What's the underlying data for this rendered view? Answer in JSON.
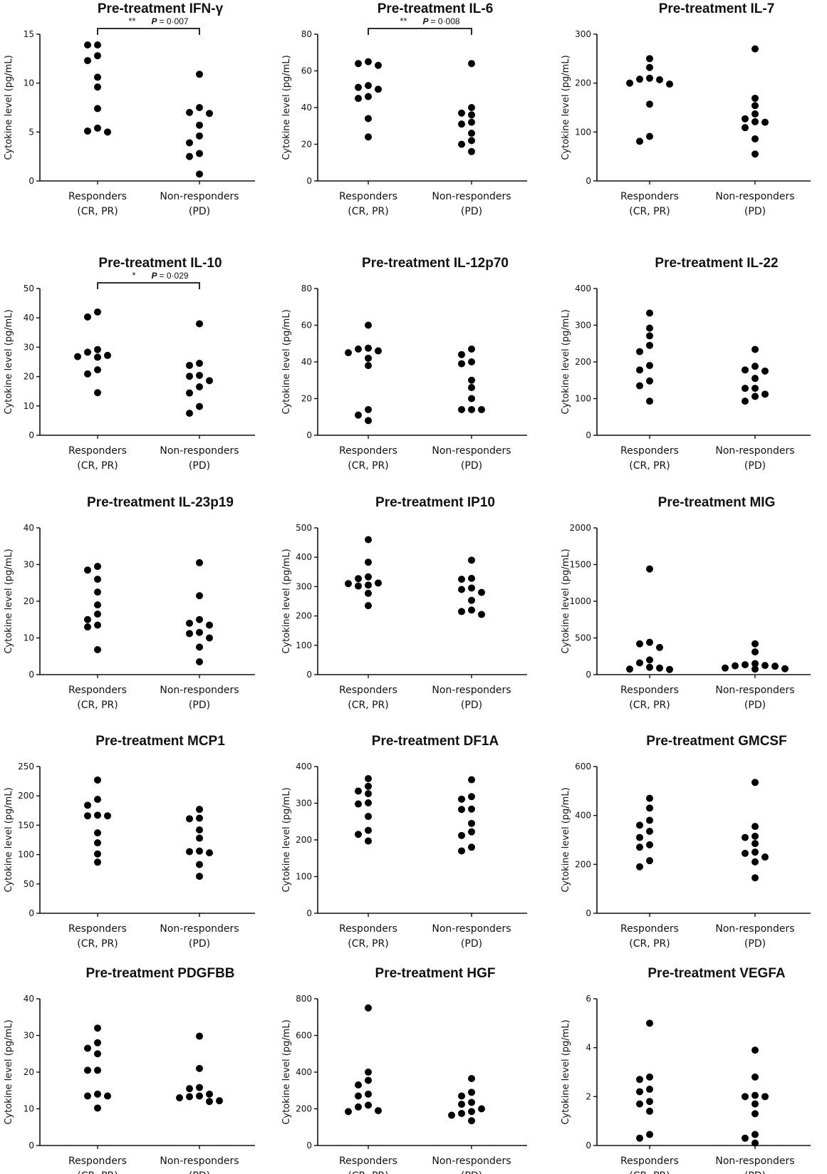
{
  "chart_data": [
    {
      "type": "scatter",
      "title": "Pre-treatment IFN-γ",
      "ylabel": "Cytokine level (pg/mL)",
      "ylim": [
        0,
        15
      ],
      "yticks": [
        0,
        5,
        10,
        15
      ],
      "groups": [
        {
          "label": [
            "Responders",
            "(CR, PR)"
          ],
          "values": [
            13.9,
            13.9,
            12.8,
            12.3,
            10.6,
            9.6,
            7.4,
            5.4,
            5.1,
            5.0
          ]
        },
        {
          "label": [
            "Non-responders",
            "(PD)"
          ],
          "values": [
            10.9,
            7.5,
            7.0,
            6.9,
            5.7,
            4.6,
            3.9,
            2.8,
            2.5,
            0.7
          ]
        }
      ],
      "significance": {
        "stars": "**",
        "p_label": "P",
        "p_value": "= 0·007"
      }
    },
    {
      "type": "scatter",
      "title": "Pre-treatment IL-6",
      "ylabel": "Cytokine level (pg/mL)",
      "ylim": [
        0,
        80
      ],
      "yticks": [
        0,
        20,
        40,
        60,
        80
      ],
      "groups": [
        {
          "label": [
            "Responders",
            "(CR, PR)"
          ],
          "values": [
            65,
            64,
            63,
            52,
            51,
            50,
            46,
            45,
            34,
            24
          ]
        },
        {
          "label": [
            "Non-responders",
            "(PD)"
          ],
          "values": [
            64,
            40,
            37,
            36,
            32,
            31,
            26,
            22,
            20,
            16
          ]
        }
      ],
      "significance": {
        "stars": "**",
        "p_label": "P",
        "p_value": "= 0·008"
      }
    },
    {
      "type": "scatter",
      "title": "Pre-treatment IL-7",
      "ylabel": "Cytokine level (pg/mL)",
      "ylim": [
        0,
        300
      ],
      "yticks": [
        0,
        100,
        200,
        300
      ],
      "groups": [
        {
          "label": [
            "Responders",
            "(CR, PR)"
          ],
          "values": [
            250,
            232,
            210,
            208,
            207,
            200,
            198,
            157,
            91,
            81
          ]
        },
        {
          "label": [
            "Non-responders",
            "(PD)"
          ],
          "values": [
            270,
            169,
            154,
            137,
            127,
            121,
            120,
            109,
            86,
            55
          ]
        }
      ]
    },
    {
      "type": "scatter",
      "title": "Pre-treatment IL-10",
      "ylabel": "Cytokine level (pg/mL)",
      "ylim": [
        0,
        50
      ],
      "yticks": [
        0,
        10,
        20,
        30,
        40,
        50
      ],
      "groups": [
        {
          "label": [
            "Responders",
            "(CR, PR)"
          ],
          "values": [
            42,
            40.3,
            29.2,
            28.3,
            27.2,
            26.8,
            26.6,
            22.3,
            20.9,
            14.5
          ]
        },
        {
          "label": [
            "Non-responders",
            "(PD)"
          ],
          "values": [
            38,
            24.5,
            23.8,
            20.4,
            20.1,
            18.6,
            16.5,
            14.4,
            9.8,
            7.5
          ]
        }
      ],
      "significance": {
        "stars": "*",
        "p_label": "P",
        "p_value": "= 0·029"
      }
    },
    {
      "type": "scatter",
      "title": "Pre-treatment IL-12p70",
      "ylabel": "Cytokine level (pg/mL)",
      "ylim": [
        0,
        80
      ],
      "yticks": [
        0,
        20,
        40,
        60,
        80
      ],
      "groups": [
        {
          "label": [
            "Responders",
            "(CR, PR)"
          ],
          "values": [
            60,
            47.5,
            47,
            46,
            45,
            42,
            38,
            14,
            11,
            8
          ]
        },
        {
          "label": [
            "Non-responders",
            "(PD)"
          ],
          "values": [
            47,
            44,
            40,
            39,
            30,
            26,
            20,
            14,
            14,
            14
          ]
        }
      ]
    },
    {
      "type": "scatter",
      "title": "Pre-treatment IL-22",
      "ylabel": "Cytokine level (pg/mL)",
      "ylim": [
        0,
        400
      ],
      "yticks": [
        0,
        100,
        200,
        300,
        400
      ],
      "groups": [
        {
          "label": [
            "Responders",
            "(CR, PR)"
          ],
          "values": [
            333,
            292,
            271,
            245,
            228,
            190,
            178,
            148,
            135,
            93
          ]
        },
        {
          "label": [
            "Non-responders",
            "(PD)"
          ],
          "values": [
            234,
            188,
            178,
            175,
            155,
            128,
            128,
            112,
            106,
            93
          ]
        }
      ]
    },
    {
      "type": "scatter",
      "title": "Pre-treatment IL-23p19",
      "ylabel": "Cytokine level (pg/mL)",
      "ylim": [
        0,
        40
      ],
      "yticks": [
        0,
        10,
        20,
        30,
        40
      ],
      "groups": [
        {
          "label": [
            "Responders",
            "(CR, PR)"
          ],
          "values": [
            29.5,
            28.5,
            26,
            22.5,
            19,
            16.5,
            15,
            13.5,
            13,
            6.8
          ]
        },
        {
          "label": [
            "Non-responders",
            "(PD)"
          ],
          "values": [
            30.5,
            21.5,
            15,
            14,
            13.5,
            11.5,
            11.2,
            10,
            7.5,
            3.5
          ]
        }
      ]
    },
    {
      "type": "scatter",
      "title": "Pre-treatment IP10",
      "ylabel": "Cytokine level (pg/mL)",
      "ylim": [
        0,
        500
      ],
      "yticks": [
        0,
        100,
        200,
        300,
        400,
        500
      ],
      "groups": [
        {
          "label": [
            "Responders",
            "(CR, PR)"
          ],
          "values": [
            460,
            383,
            333,
            327,
            312,
            310,
            305,
            302,
            277,
            235
          ]
        },
        {
          "label": [
            "Non-responders",
            "(PD)"
          ],
          "values": [
            390,
            328,
            325,
            295,
            290,
            280,
            253,
            220,
            215,
            205
          ]
        }
      ]
    },
    {
      "type": "scatter",
      "title": "Pre-treatment MIG",
      "ylabel": "Cytokine level (pg/mL)",
      "ylim": [
        0,
        2000
      ],
      "yticks": [
        0,
        500,
        1000,
        1500,
        2000
      ],
      "groups": [
        {
          "label": [
            "Responders",
            "(CR, PR)"
          ],
          "values": [
            1440,
            440,
            420,
            370,
            200,
            160,
            100,
            90,
            75,
            70
          ]
        },
        {
          "label": [
            "Non-responders",
            "(PD)"
          ],
          "values": [
            420,
            310,
            150,
            135,
            125,
            120,
            115,
            90,
            80,
            75
          ]
        }
      ]
    },
    {
      "type": "scatter",
      "title": "Pre-treatment MCP1",
      "ylabel": "Cytokine level (pg/mL)",
      "ylim": [
        0,
        250
      ],
      "yticks": [
        0,
        50,
        100,
        150,
        200,
        250
      ],
      "groups": [
        {
          "label": [
            "Responders",
            "(CR, PR)"
          ],
          "values": [
            227,
            194,
            184,
            167,
            166,
            166,
            137,
            120,
            101,
            87
          ]
        },
        {
          "label": [
            "Non-responders",
            "(PD)"
          ],
          "values": [
            177,
            162,
            161,
            142,
            128,
            106,
            105,
            103,
            83,
            63
          ]
        }
      ]
    },
    {
      "type": "scatter",
      "title": "Pre-treatment DF1A",
      "ylabel": "Cytokine level (pg/mL)",
      "ylim": [
        0,
        400
      ],
      "yticks": [
        0,
        100,
        200,
        300,
        400
      ],
      "groups": [
        {
          "label": [
            "Responders",
            "(CR, PR)"
          ],
          "values": [
            367,
            346,
            333,
            326,
            301,
            298,
            264,
            226,
            215,
            197
          ]
        },
        {
          "label": [
            "Non-responders",
            "(PD)"
          ],
          "values": [
            364,
            318,
            311,
            284,
            283,
            245,
            222,
            212,
            180,
            170
          ]
        }
      ]
    },
    {
      "type": "scatter",
      "title": "Pre-treatment GMCSF",
      "ylabel": "Cytokine level (pg/mL)",
      "ylim": [
        0,
        600
      ],
      "yticks": [
        0,
        200,
        400,
        600
      ],
      "groups": [
        {
          "label": [
            "Responders",
            "(CR, PR)"
          ],
          "values": [
            470,
            430,
            380,
            360,
            335,
            310,
            280,
            270,
            215,
            190
          ]
        },
        {
          "label": [
            "Non-responders",
            "(PD)"
          ],
          "values": [
            535,
            355,
            315,
            310,
            285,
            250,
            245,
            230,
            210,
            145
          ]
        }
      ]
    },
    {
      "type": "scatter",
      "title": "Pre-treatment PDGFBB",
      "ylabel": "Cytokine level (pg/mL)",
      "ylim": [
        0,
        40
      ],
      "yticks": [
        0,
        10,
        20,
        30,
        40
      ],
      "groups": [
        {
          "label": [
            "Responders",
            "(CR, PR)"
          ],
          "values": [
            32,
            28,
            26.5,
            25,
            20.5,
            20.5,
            14,
            13.5,
            13.5,
            10.2
          ]
        },
        {
          "label": [
            "Non-responders",
            "(PD)"
          ],
          "values": [
            29.8,
            21,
            15.8,
            15.5,
            14,
            13.5,
            13.3,
            13,
            12.2,
            12
          ]
        }
      ]
    },
    {
      "type": "scatter",
      "title": "Pre-treatment HGF",
      "ylabel": "Cytokine level (pg/mL)",
      "ylim": [
        0,
        800
      ],
      "yticks": [
        0,
        200,
        400,
        600,
        800
      ],
      "groups": [
        {
          "label": [
            "Responders",
            "(CR, PR)"
          ],
          "values": [
            750,
            400,
            355,
            330,
            280,
            270,
            220,
            210,
            190,
            185
          ]
        },
        {
          "label": [
            "Non-responders",
            "(PD)"
          ],
          "values": [
            365,
            290,
            270,
            235,
            225,
            200,
            185,
            175,
            165,
            135
          ]
        }
      ]
    },
    {
      "type": "scatter",
      "title": "Pre-treatment VEGFA",
      "ylabel": "Cytokine level (pg/mL)",
      "ylim": [
        0,
        6
      ],
      "yticks": [
        0,
        2,
        4,
        6
      ],
      "groups": [
        {
          "label": [
            "Responders",
            "(CR, PR)"
          ],
          "values": [
            5.0,
            2.8,
            2.7,
            2.3,
            2.2,
            1.8,
            1.7,
            1.4,
            0.45,
            0.3
          ]
        },
        {
          "label": [
            "Non-responders",
            "(PD)"
          ],
          "values": [
            3.9,
            2.8,
            2.05,
            2.0,
            2.0,
            1.7,
            1.3,
            0.45,
            0.3,
            0.1
          ]
        }
      ]
    }
  ]
}
